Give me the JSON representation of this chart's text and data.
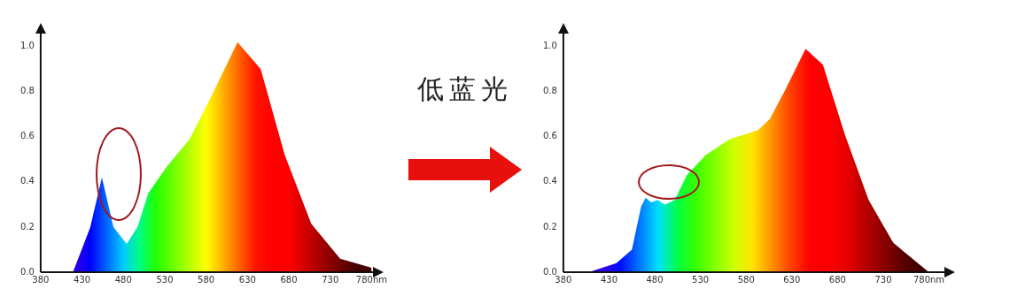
{
  "chart_data": [
    {
      "type": "area",
      "xlim": [
        380,
        780
      ],
      "ylim": [
        0,
        1.05
      ],
      "xticks": [
        380,
        430,
        480,
        530,
        580,
        630,
        680,
        730,
        {
          "value": 780,
          "label": "780nm"
        }
      ],
      "yticks": [
        {
          "value": 0,
          "label": "0.0"
        },
        {
          "value": 0.2,
          "label": "0.2"
        },
        {
          "value": 0.4,
          "label": "0.4"
        },
        {
          "value": 0.6,
          "label": "0.6"
        },
        {
          "value": 0.8,
          "label": "0.8"
        },
        {
          "value": 1,
          "label": "1.0"
        }
      ],
      "series": [
        {
          "x": [
            380,
            419,
            440,
            454,
            468,
            484,
            497,
            510,
            532,
            560,
            589,
            618,
            646,
            675,
            707,
            742,
            780
          ],
          "values": [
            0,
            0,
            0.2,
            0.42,
            0.2,
            0.125,
            0.2,
            0.35,
            0.465,
            0.59,
            0.8,
            1.02,
            0.9,
            0.52,
            0.215,
            0.06,
            0.02
          ]
        }
      ],
      "grid": false,
      "legend": false
    },
    {
      "type": "other",
      "title": "低蓝光"
    },
    {
      "type": "area",
      "xlim": [
        380,
        795
      ],
      "ylim": [
        0,
        1.05
      ],
      "xticks": [
        380,
        430,
        480,
        530,
        580,
        630,
        680,
        730,
        {
          "value": 780,
          "label": "780nm"
        }
      ],
      "yticks": [
        {
          "value": 0,
          "label": "0.0"
        },
        {
          "value": 0.2,
          "label": "0.2"
        },
        {
          "value": 0.4,
          "label": "0.4"
        },
        {
          "value": 0.6,
          "label": "0.6"
        },
        {
          "value": 0.8,
          "label": "0.8"
        },
        {
          "value": 1,
          "label": "1.0"
        }
      ],
      "series": [
        {
          "x": [
            380,
            410,
            438,
            455,
            465,
            470,
            476,
            483,
            491,
            502,
            515,
            536,
            562,
            593,
            606,
            623,
            645,
            664,
            688,
            714,
            741,
            779
          ],
          "values": [
            0,
            0.003,
            0.04,
            0.1,
            0.29,
            0.33,
            0.31,
            0.32,
            0.3,
            0.32,
            0.43,
            0.52,
            0.59,
            0.63,
            0.68,
            0.81,
            0.99,
            0.92,
            0.61,
            0.32,
            0.13,
            0.003
          ]
        }
      ],
      "grid": false,
      "legend": false
    }
  ]
}
